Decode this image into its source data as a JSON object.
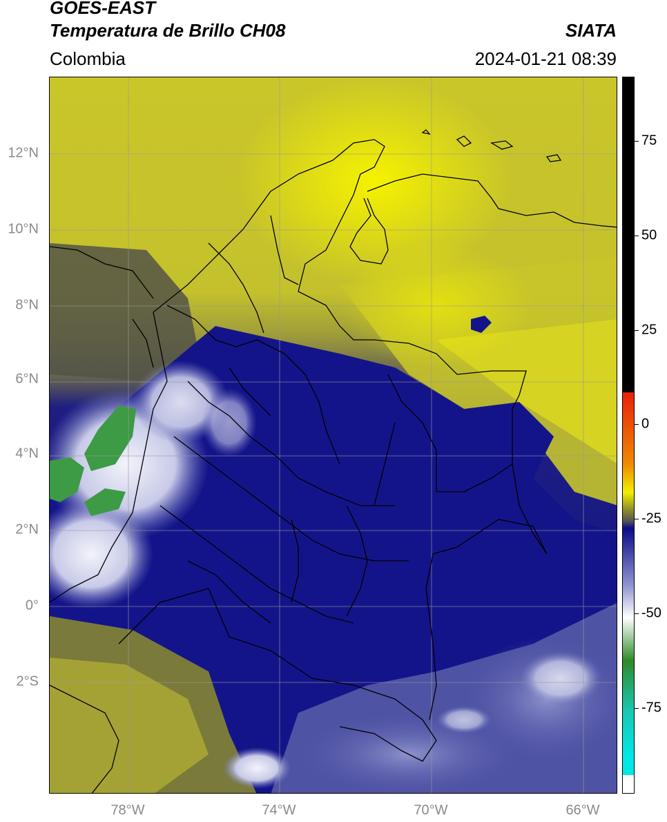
{
  "header": {
    "satellite": "GOES-EAST",
    "product": "Temperatura de Brillo CH08",
    "institution": "SIATA",
    "region": "Colombia",
    "datetime": "2024-01-21 08:39"
  },
  "axes": {
    "lat_labels": [
      "12°N",
      "10°N",
      "8°N",
      "6°N",
      "4°N",
      "2°N",
      "0°",
      "2°S"
    ],
    "lon_labels": [
      "78°W",
      "74°W",
      "70°W",
      "66°W"
    ]
  },
  "colorbar": {
    "tick_labels": [
      "75",
      "50",
      "25",
      "0",
      "-25",
      "-50",
      "-75"
    ],
    "colors": {
      "black": "#000000",
      "red": "#e8200a",
      "orange": "#f08a00",
      "yellow": "#f2ee00",
      "olive": "#8c8a2c",
      "gray": "#555555",
      "navy": "#0a0c8a",
      "periwinkle": "#9094d0",
      "white": "#ffffff",
      "green": "#2f8a2a",
      "teal": "#18c8b0",
      "cyan": "#00e8e8"
    }
  },
  "map": {
    "colors": {
      "yellow_bright": "#f4f000",
      "yellow": "#d4d020",
      "olive": "#a6a438",
      "gray": "#5a5a4a",
      "navy": "#14148a",
      "blue_light": "#5c60ac",
      "white_cloud": "#e6e8f6",
      "green_cloud": "#3d9a45",
      "border": "#000000",
      "grid": "#9a9a9a"
    }
  }
}
